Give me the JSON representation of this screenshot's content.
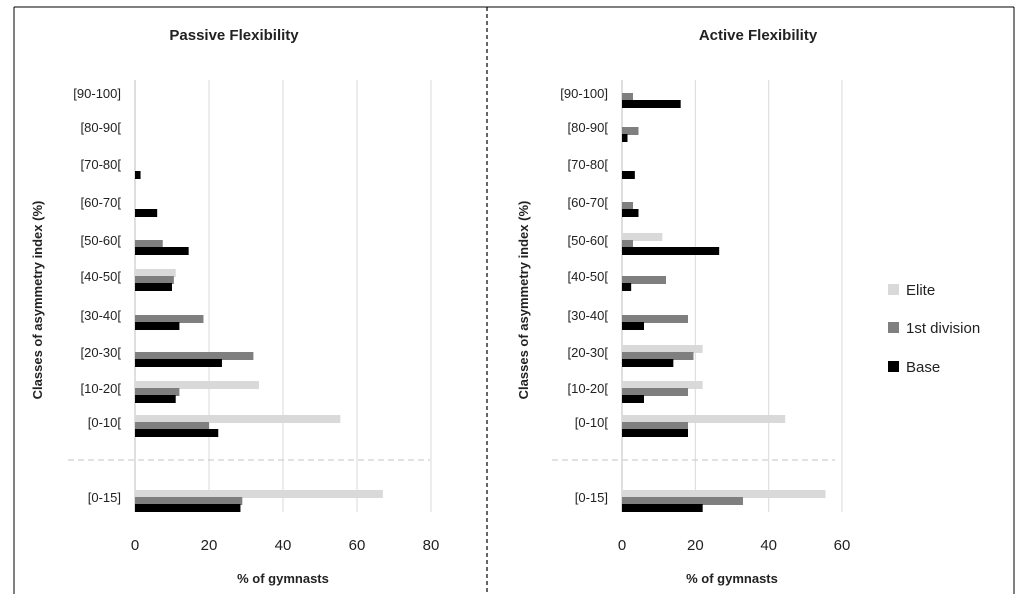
{
  "chart_data": [
    {
      "type": "bar",
      "orientation": "horizontal",
      "title": "Passive Flexibility",
      "xlabel": "% of gymnasts",
      "ylabel": "Classes of asymmetry index (%)",
      "xlim": [
        0,
        80
      ],
      "xticks": [
        "0",
        "20",
        "40",
        "60",
        "80"
      ],
      "grid": "vertical",
      "categories": [
        "[90-100]",
        "[80-90[",
        "[70-80[",
        "[60-70[",
        "[50-60[",
        "[40-50[",
        "[30-40[",
        "[20-30[",
        "[10-20[",
        "[0-10[",
        "[0-15]"
      ],
      "series": [
        {
          "name": "Elite",
          "values": [
            0,
            0,
            0,
            0,
            0,
            11,
            0,
            0,
            33.5,
            55.5,
            67
          ]
        },
        {
          "name": "1st division",
          "values": [
            0,
            0,
            0,
            0,
            7.5,
            10.5,
            18.5,
            32,
            12,
            20,
            29
          ]
        },
        {
          "name": "Base",
          "values": [
            0,
            0,
            1.5,
            6,
            14.5,
            10,
            12,
            23.5,
            11,
            22.5,
            28.5
          ]
        }
      ]
    },
    {
      "type": "bar",
      "orientation": "horizontal",
      "title": "Active Flexibility",
      "xlabel": "% of gymnasts",
      "ylabel": "Classes of asymmetry index (%)",
      "xlim": [
        0,
        60
      ],
      "xticks": [
        "0",
        "20",
        "40",
        "60"
      ],
      "grid": "vertical",
      "categories": [
        "[90-100]",
        "[80-90[",
        "[70-80[",
        "[60-70[",
        "[50-60[",
        "[40-50[",
        "[30-40[",
        "[20-30[",
        "[10-20[",
        "[0-10[",
        "[0-15]"
      ],
      "series": [
        {
          "name": "Elite",
          "values": [
            0,
            0,
            0,
            0,
            11,
            0,
            0,
            22,
            22,
            44.5,
            55.5
          ]
        },
        {
          "name": "1st division",
          "values": [
            3,
            4.5,
            0,
            3,
            3,
            12,
            18,
            19.5,
            18,
            18,
            33
          ]
        },
        {
          "name": "Base",
          "values": [
            16,
            1.5,
            3.5,
            4.5,
            26.5,
            2.5,
            6,
            14,
            6,
            18,
            22
          ]
        }
      ]
    }
  ],
  "legend": {
    "placement": "right",
    "items": [
      {
        "label": "Elite",
        "color": "#d9d9d9"
      },
      {
        "label": "1st division",
        "color": "#7f7f7f"
      },
      {
        "label": "Base",
        "color": "#000000"
      }
    ]
  },
  "colors": {
    "Elite": "#d9d9d9",
    "1st division": "#7f7f7f",
    "Base": "#000000",
    "grid": "#d9d9d9"
  }
}
